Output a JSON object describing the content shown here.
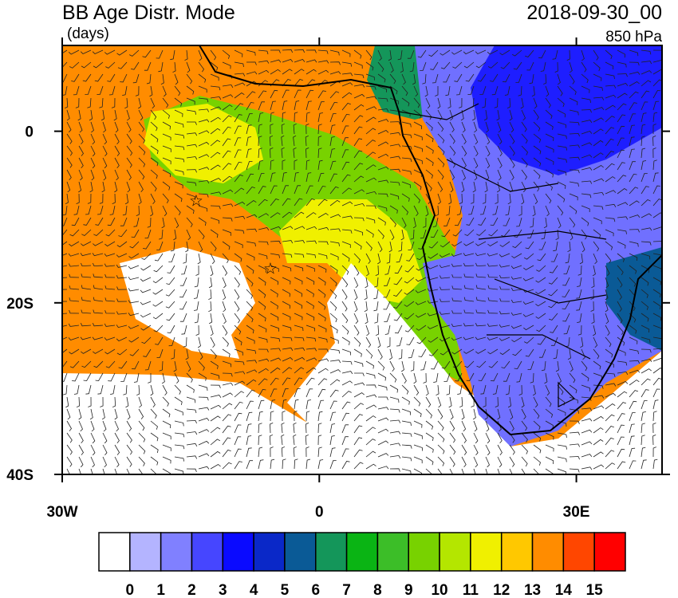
{
  "header": {
    "title": "BB Age Distr. Mode",
    "units": "(days)",
    "time": "2018-09-30_00",
    "level": "850 hPa"
  },
  "map": {
    "lon_range": [
      -30,
      40
    ],
    "lat_range": [
      -40,
      10
    ],
    "lon_ticks": [
      {
        "value": -30,
        "label": "30W"
      },
      0,
      {
        "value": 30,
        "label": "30E"
      }
    ],
    "lat_ticks": [
      0,
      {
        "value": -20,
        "label": "20S"
      },
      {
        "value": -40,
        "label": "40S"
      }
    ]
  },
  "colorbar": {
    "colors": [
      "#ffffff",
      "#b4b4ff",
      "#8080ff",
      "#4646ff",
      "#0a0aff",
      "#0a28c8",
      "#0a5a96",
      "#14965a",
      "#0ab414",
      "#3cbe28",
      "#78d200",
      "#b4e600",
      "#f0f000",
      "#ffc800",
      "#ff8c00",
      "#ff4600",
      "#ff0000"
    ],
    "labels": [
      0,
      1,
      2,
      3,
      4,
      5,
      6,
      7,
      8,
      9,
      10,
      11,
      12,
      13,
      14,
      15
    ]
  }
}
